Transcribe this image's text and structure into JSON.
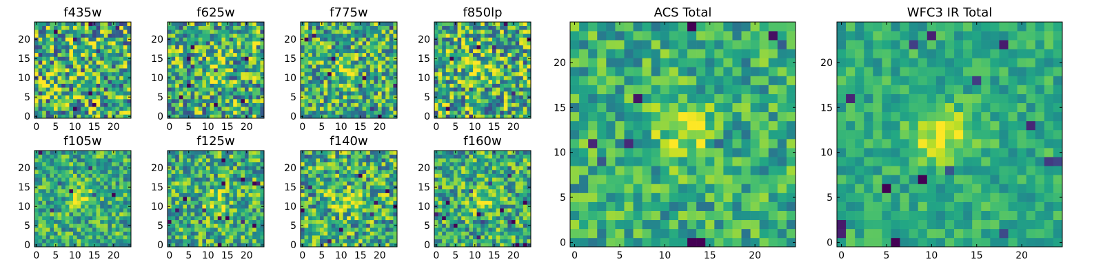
{
  "figure": {
    "layout": "grid of stamp images: 8 small panels (2 rows x 4) + 2 large panels"
  },
  "chart_data": [
    {
      "type": "heatmap",
      "title": "f435w",
      "colormap": "viridis",
      "size": [
        25,
        25
      ],
      "xlim": [
        -0.5,
        24.5
      ],
      "ylim": [
        -0.5,
        24.5
      ],
      "xticks": [
        0,
        5,
        10,
        15,
        20
      ],
      "yticks": [
        0,
        5,
        10,
        15,
        20
      ],
      "source_peak": [
        12,
        12
      ],
      "peak_strength": 0.0,
      "noise": 0.55,
      "seed": 11
    },
    {
      "type": "heatmap",
      "title": "f625w",
      "colormap": "viridis",
      "size": [
        25,
        25
      ],
      "xlim": [
        -0.5,
        24.5
      ],
      "ylim": [
        -0.5,
        24.5
      ],
      "xticks": [
        0,
        5,
        10,
        15,
        20
      ],
      "yticks": [
        0,
        5,
        10,
        15,
        20
      ],
      "source_peak": [
        11,
        12
      ],
      "peak_strength": 0.35,
      "noise": 0.5,
      "seed": 23
    },
    {
      "type": "heatmap",
      "title": "f775w",
      "colormap": "viridis",
      "size": [
        25,
        25
      ],
      "xlim": [
        -0.5,
        24.5
      ],
      "ylim": [
        -0.5,
        24.5
      ],
      "xticks": [
        0,
        5,
        10,
        15,
        20
      ],
      "yticks": [
        0,
        5,
        10,
        15,
        20
      ],
      "source_peak": [
        11,
        12
      ],
      "peak_strength": 0.45,
      "noise": 0.45,
      "seed": 37
    },
    {
      "type": "heatmap",
      "title": "f850lp",
      "colormap": "viridis",
      "size": [
        25,
        25
      ],
      "xlim": [
        -0.5,
        24.5
      ],
      "ylim": [
        -0.5,
        24.5
      ],
      "xticks": [
        0,
        5,
        10,
        15,
        20
      ],
      "yticks": [
        0,
        5,
        10,
        15,
        20
      ],
      "source_peak": [
        11,
        12
      ],
      "peak_strength": 0.4,
      "noise": 0.5,
      "seed": 41
    },
    {
      "type": "heatmap",
      "title": "f105w",
      "colormap": "viridis",
      "size": [
        25,
        25
      ],
      "xlim": [
        -0.5,
        24.5
      ],
      "ylim": [
        -0.5,
        24.5
      ],
      "xticks": [
        0,
        5,
        10,
        15,
        20
      ],
      "yticks": [
        0,
        5,
        10,
        15,
        20
      ],
      "source_peak": [
        12,
        12
      ],
      "peak_strength": 0.45,
      "noise": 0.35,
      "seed": 53
    },
    {
      "type": "heatmap",
      "title": "f125w",
      "colormap": "viridis",
      "size": [
        25,
        25
      ],
      "xlim": [
        -0.5,
        24.5
      ],
      "ylim": [
        -0.5,
        24.5
      ],
      "xticks": [
        0,
        5,
        10,
        15,
        20
      ],
      "yticks": [
        0,
        5,
        10,
        15,
        20
      ],
      "source_peak": [
        12,
        11
      ],
      "peak_strength": 0.4,
      "noise": 0.4,
      "seed": 67
    },
    {
      "type": "heatmap",
      "title": "f140w",
      "colormap": "viridis",
      "size": [
        25,
        25
      ],
      "xlim": [
        -0.5,
        24.5
      ],
      "ylim": [
        -0.5,
        24.5
      ],
      "xticks": [
        0,
        5,
        10,
        15,
        20
      ],
      "yticks": [
        0,
        5,
        10,
        15,
        20
      ],
      "source_peak": [
        11,
        12
      ],
      "peak_strength": 0.45,
      "noise": 0.45,
      "seed": 71
    },
    {
      "type": "heatmap",
      "title": "f160w",
      "colormap": "viridis",
      "size": [
        25,
        25
      ],
      "xlim": [
        -0.5,
        24.5
      ],
      "ylim": [
        -0.5,
        24.5
      ],
      "xticks": [
        0,
        5,
        10,
        15,
        20
      ],
      "yticks": [
        0,
        5,
        10,
        15,
        20
      ],
      "source_peak": [
        11,
        12
      ],
      "peak_strength": 0.45,
      "noise": 0.4,
      "seed": 83
    },
    {
      "type": "heatmap",
      "title": "ACS Total",
      "colormap": "viridis",
      "size": [
        25,
        25
      ],
      "xlim": [
        -0.5,
        24.5
      ],
      "ylim": [
        -0.5,
        24.5
      ],
      "xticks": [
        0,
        5,
        10,
        15,
        20
      ],
      "yticks": [
        0,
        5,
        10,
        15,
        20
      ],
      "source_peak": [
        12,
        12
      ],
      "peak_strength": 0.5,
      "noise": 0.3,
      "seed": 97
    },
    {
      "type": "heatmap",
      "title": "WFC3 IR Total",
      "colormap": "viridis",
      "size": [
        25,
        25
      ],
      "xlim": [
        -0.5,
        24.5
      ],
      "ylim": [
        -0.5,
        24.5
      ],
      "xticks": [
        0,
        5,
        10,
        15,
        20
      ],
      "yticks": [
        0,
        5,
        10,
        15,
        20
      ],
      "source_peak": [
        11,
        12
      ],
      "peak_strength": 0.6,
      "noise": 0.2,
      "seed": 101
    }
  ]
}
